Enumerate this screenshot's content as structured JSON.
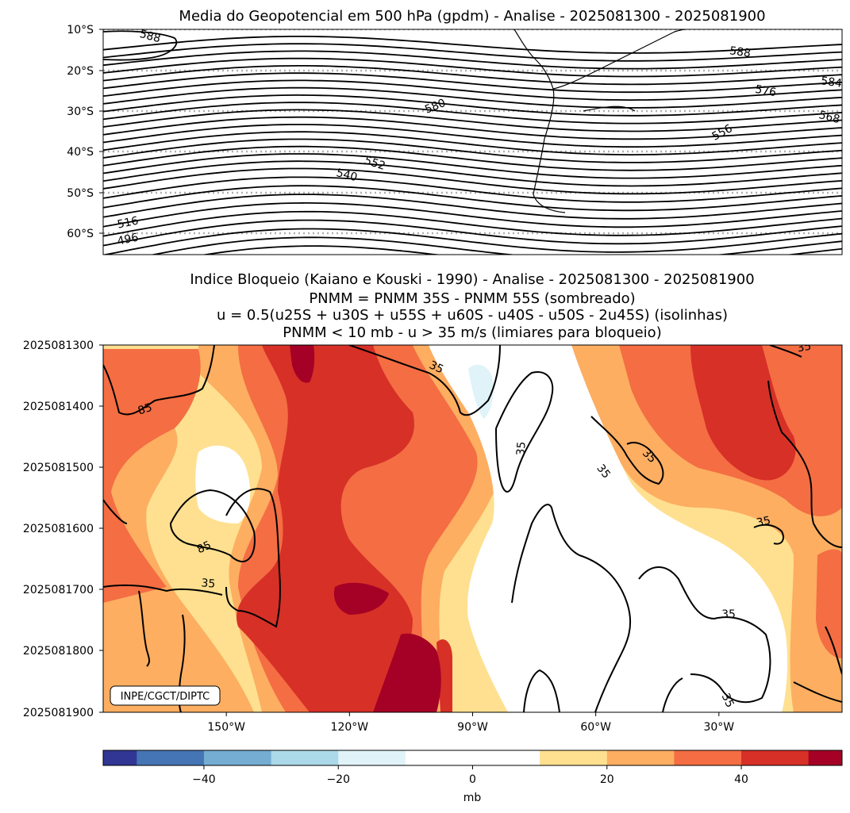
{
  "chart_data": [
    {
      "type": "contour",
      "title": "Media do Geopotencial em 500 hPa (gpdm) - Analise - 2025081300 - 2025081900",
      "variable": "500 hPa geopotential height",
      "units": "gpdm",
      "ylabel": "",
      "xlabel": "",
      "y_ticks": [
        "10°S",
        "20°S",
        "30°S",
        "40°S",
        "50°S",
        "60°S"
      ],
      "lat_range": [
        -10,
        -65
      ],
      "lon_range": [
        -180,
        0
      ],
      "gridlines": "dotted latitude lines",
      "contour_labels": [
        "588",
        "588",
        "584",
        "576",
        "580",
        "568",
        "556",
        "552",
        "540",
        "516",
        "496"
      ]
    },
    {
      "type": "heatmap",
      "title_lines": [
        "Indice Bloqueio (Kaiano e Kouski - 1990) - Analise - 2025081300 - 2025081900",
        "PNMM = PNMM 35S - PNMM 55S (sombreado)",
        "u = 0.5(u25S + u30S + u55S + u60S - u40S - u50S - 2u45S) (isolinhas)",
        "PNMM < 10 mb - u > 35 m/s (limiares para bloqueio)"
      ],
      "y_ticks": [
        "2025081300",
        "2025081400",
        "2025081500",
        "2025081600",
        "2025081700",
        "2025081800",
        "2025081900"
      ],
      "x_ticks": [
        "150°W",
        "120°W",
        "90°W",
        "60°W",
        "30°W"
      ],
      "x_tick_values": [
        -150,
        -120,
        -90,
        -60,
        -30
      ],
      "x_range": [
        -180,
        0
      ],
      "shading_variable": "PNMM",
      "contour_variable": "u",
      "contour_labels": [
        "35",
        "85",
        "35",
        "35",
        "35",
        "85",
        "35",
        "35",
        "35",
        "35",
        "35"
      ],
      "credit": "INPE/CGCT/DIPTC",
      "colorbar": {
        "label": "mb",
        "levels": [
          -55,
          -50,
          -40,
          -30,
          -20,
          -10,
          0,
          10,
          20,
          30,
          40,
          50,
          55
        ],
        "ticks": [
          "−40",
          "−20",
          "0",
          "20",
          "40"
        ],
        "tick_values": [
          -40,
          -20,
          0,
          20,
          40
        ],
        "colors": [
          "#313695",
          "#4575b4",
          "#74add1",
          "#abd9e9",
          "#e0f3f8",
          "#ffffff",
          "#ffffff",
          "#fee090",
          "#fdae61",
          "#f46d43",
          "#d73027",
          "#a50026"
        ]
      }
    }
  ]
}
